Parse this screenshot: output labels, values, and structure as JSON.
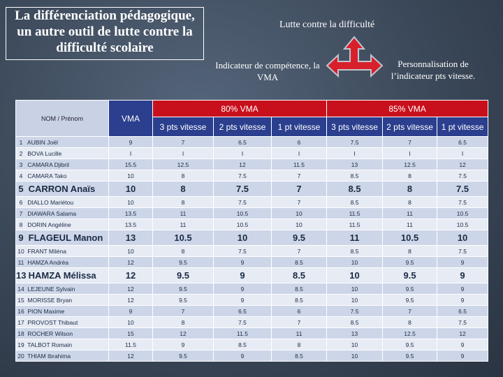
{
  "slide": {
    "title": "La différenciation pédagogique, un autre outil de lutte contre la difficulté scolaire",
    "center_label": "Lutte contre la difficulté",
    "left_label": "Indicateur  de compétence, la VMA",
    "right_label": "Personnalisation de l’indicateur pts vitesse."
  },
  "table": {
    "name_header": "NOM / Prénom",
    "vma_header": "VMA",
    "groups": [
      "80% VMA",
      "85% VMA"
    ],
    "columns": [
      "3 pts vitesse",
      "2 pts vitesse",
      "1 pt vitesse",
      "3 pts vitesse",
      "2 pts vitesse",
      "1 pt vitesse"
    ],
    "rows": [
      {
        "num": 1,
        "name": "AUBIN Joël",
        "vma": 9,
        "values": [
          7,
          6.5,
          6,
          7.5,
          7,
          6.5
        ]
      },
      {
        "num": 2,
        "name": "BOVA Lucille",
        "vma": "I",
        "values": [
          "I",
          "I",
          "I",
          "I",
          "I",
          "I"
        ]
      },
      {
        "num": 3,
        "name": "CAMARA Djibril",
        "vma": 15.5,
        "values": [
          12.5,
          12,
          11.5,
          13,
          12.5,
          12
        ]
      },
      {
        "num": 4,
        "name": "CAMARA Tako",
        "vma": 10,
        "values": [
          8,
          7.5,
          7,
          8.5,
          8,
          7.5
        ]
      },
      {
        "num": 5,
        "name": "CARRON Anaïs",
        "vma": 10,
        "values": [
          8,
          7.5,
          7,
          8.5,
          8,
          7.5
        ],
        "highlighted": true
      },
      {
        "num": 6,
        "name": "DIALLO Mariétou",
        "vma": 10,
        "values": [
          8,
          7.5,
          7,
          8.5,
          8,
          7.5
        ]
      },
      {
        "num": 7,
        "name": "DIAWARA Salama",
        "vma": 13.5,
        "values": [
          11,
          10.5,
          10,
          11.5,
          11,
          10.5
        ]
      },
      {
        "num": 8,
        "name": "DORIN Angéline",
        "vma": 13.5,
        "values": [
          11,
          10.5,
          10,
          11.5,
          11,
          10.5
        ]
      },
      {
        "num": 9,
        "name": "FLAGEUL Manon",
        "vma": 13,
        "values": [
          10.5,
          10,
          9.5,
          11,
          10.5,
          10
        ],
        "highlighted": true
      },
      {
        "num": 10,
        "name": "FRANT Miléna",
        "vma": 10,
        "values": [
          8,
          7.5,
          7,
          8.5,
          8,
          7.5
        ]
      },
      {
        "num": 11,
        "name": "HAMZA Andréa",
        "vma": 12,
        "values": [
          9.5,
          9,
          8.5,
          10,
          9.5,
          9
        ]
      },
      {
        "num": 13,
        "name": "HAMZA Mélissa",
        "vma": 12,
        "values": [
          9.5,
          9,
          8.5,
          10,
          9.5,
          9
        ],
        "highlighted": true
      },
      {
        "num": 14,
        "name": "LEJEUNE Sylvain",
        "vma": 12,
        "values": [
          9.5,
          9,
          8.5,
          10,
          9.5,
          9
        ]
      },
      {
        "num": 15,
        "name": "MORISSE Bryan",
        "vma": 12,
        "values": [
          9.5,
          9,
          8.5,
          10,
          9.5,
          9
        ]
      },
      {
        "num": 16,
        "name": "PION Maxime",
        "vma": 9,
        "values": [
          7,
          6.5,
          6,
          7.5,
          7,
          6.5
        ]
      },
      {
        "num": 17,
        "name": "PROVOST Thibaut",
        "vma": 10,
        "values": [
          8,
          7.5,
          7,
          8.5,
          8,
          7.5
        ]
      },
      {
        "num": 18,
        "name": "ROCHER Wilson",
        "vma": 15,
        "values": [
          12,
          11.5,
          11,
          13,
          12.5,
          12
        ]
      },
      {
        "num": 19,
        "name": "TALBOT Romain",
        "vma": 11.5,
        "values": [
          9,
          8.5,
          8,
          10,
          9.5,
          9
        ]
      },
      {
        "num": 20,
        "name": "THIAM Ibrahima",
        "vma": 12,
        "values": [
          9.5,
          9,
          8.5,
          10,
          9.5,
          9
        ]
      }
    ]
  }
}
